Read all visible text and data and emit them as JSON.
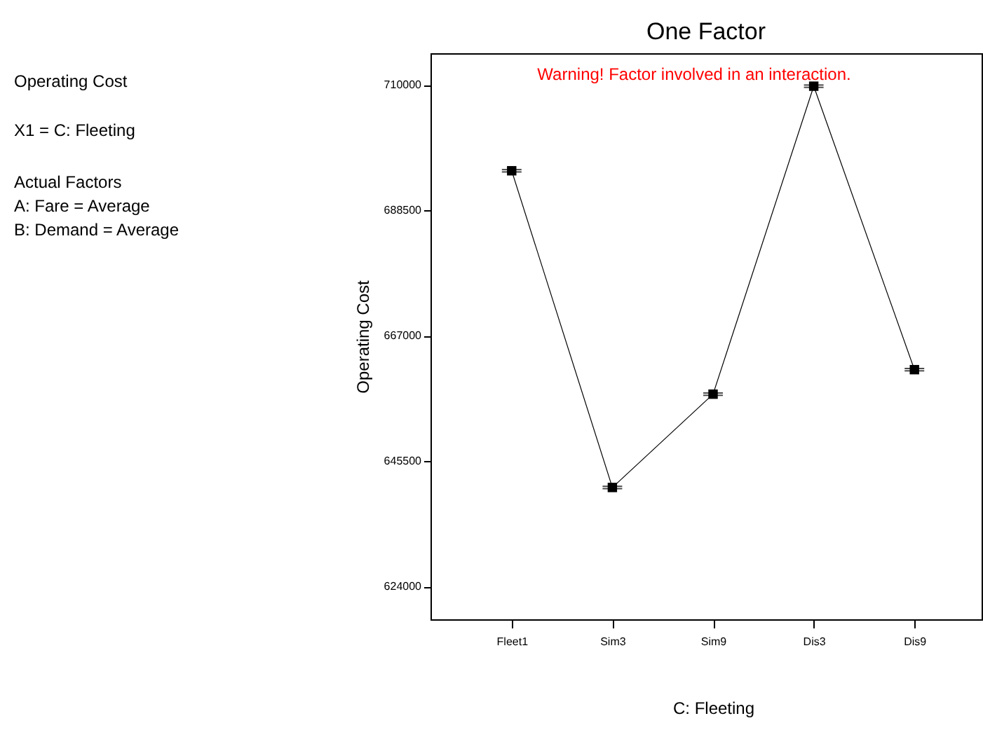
{
  "chart_data": {
    "type": "line",
    "title": "One Factor",
    "xlabel": "C: Fleeting",
    "ylabel": "Operating Cost",
    "categories": [
      "Fleet1",
      "Sim3",
      "Sim9",
      "Dis3",
      "Dis9"
    ],
    "series": [
      {
        "color": "#000000",
        "values": [
          695300,
          641000,
          657000,
          709800,
          661200
        ],
        "errors": [
          200,
          200,
          200,
          200,
          200
        ]
      }
    ],
    "ylim": [
      618400,
      715450
    ],
    "yticks": [
      624000,
      645500,
      667000,
      688500,
      710000
    ],
    "marker": "square",
    "line_style": "solid",
    "grid": false,
    "annotations": [
      "Operating Cost",
      "X1 = C: Fleeting",
      "Actual Factors",
      "A: Fare = Average",
      "B: Demand = Average",
      "Warning! Factor involved in an interaction."
    ]
  }
}
